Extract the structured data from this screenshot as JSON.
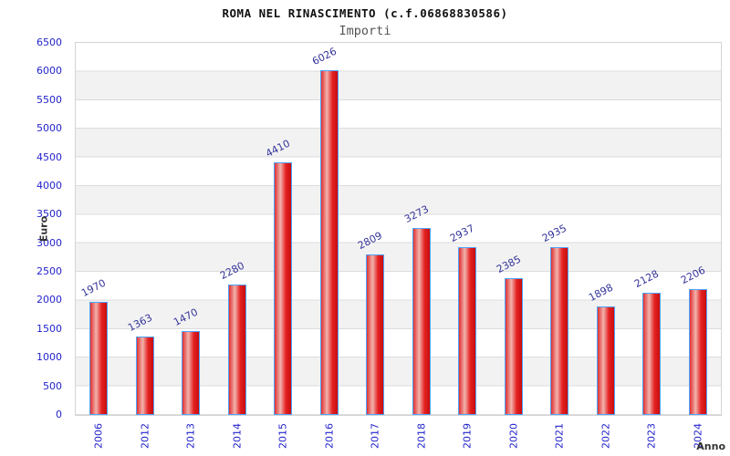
{
  "header": {
    "title": "ROMA NEL RINASCIMENTO (c.f.06868830586)",
    "subtitle": "Importi"
  },
  "chart_data": {
    "type": "bar",
    "title": "ROMA NEL RINASCIMENTO (c.f.06868830586)",
    "subtitle": "Importi",
    "xlabel": "Anno",
    "ylabel": "Euro",
    "categories": [
      "2006",
      "2012",
      "2013",
      "2014",
      "2015",
      "2016",
      "2017",
      "2018",
      "2019",
      "2020",
      "2021",
      "2022",
      "2023",
      "2024"
    ],
    "values": [
      1970,
      1363,
      1470,
      2280,
      4410,
      6026,
      2809,
      3273,
      2937,
      2385,
      2935,
      1898,
      2128,
      2206
    ],
    "ylim": [
      0,
      6500
    ],
    "ytick_step": 500,
    "grid": "horizontal-bands-alternating",
    "legend": "none",
    "value_labels_rotated": true,
    "colors": {
      "bar_fill_left": "#e03131",
      "bar_fill_highlight": "#f2b3ad",
      "bar_fill_mid": "#e42222",
      "bar_fill_right": "#c90d0d",
      "bar_border": "#4da3ff",
      "tick_label": "#2323cc",
      "value_label": "#333399",
      "band_gray": "#f2f2f2",
      "grid_line": "#dcdcdc",
      "axis_title": "#333333"
    }
  }
}
